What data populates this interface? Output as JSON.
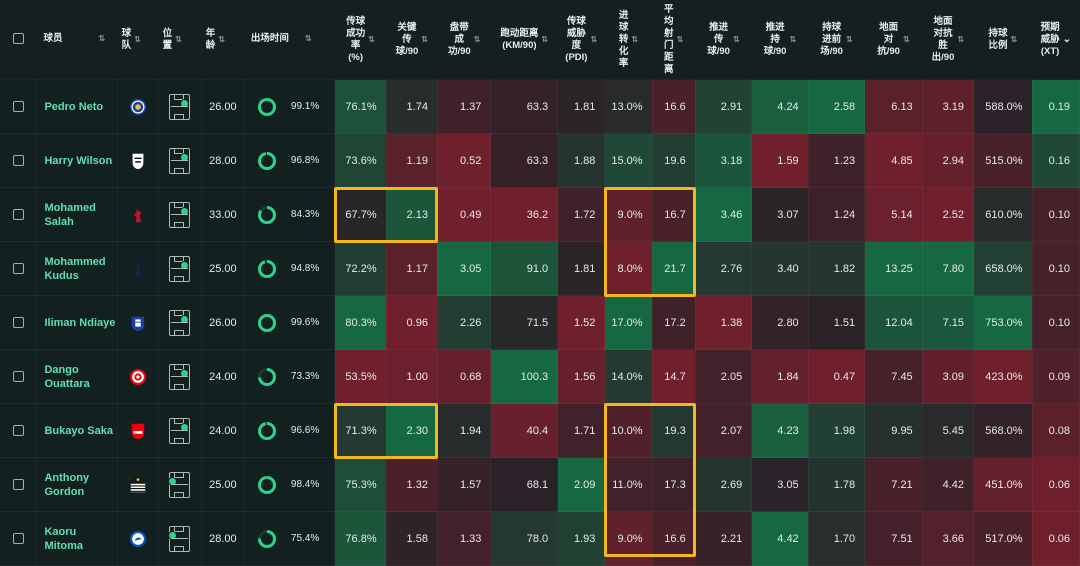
{
  "columns": [
    {
      "key": "player",
      "label": "球员"
    },
    {
      "key": "team",
      "label": "球\n队"
    },
    {
      "key": "position",
      "label": "位\n置"
    },
    {
      "key": "age",
      "label": "年\n龄"
    },
    {
      "key": "time",
      "label": "出场时间"
    },
    {
      "key": "pass_pct",
      "label": "传球\n成功\n率\n(%)"
    },
    {
      "key": "key_pass",
      "label": "关键\n传\n球/90"
    },
    {
      "key": "dribble",
      "label": "盘带\n成\n功/90"
    },
    {
      "key": "distance",
      "label": "跑动距离\n(KM/90)"
    },
    {
      "key": "pdi",
      "label": "传球\n威胁\n度\n(PDI)"
    },
    {
      "key": "conv",
      "label": "进\n球\n转\n化\n率"
    },
    {
      "key": "shot_dist",
      "label": "平\n均\n射\n门\n距\n离"
    },
    {
      "key": "prog_pass",
      "label": "推进\n传\n球/90"
    },
    {
      "key": "prog_carry",
      "label": "推进\n持\n球/90"
    },
    {
      "key": "carry_final",
      "label": "持球\n进前\n场/90"
    },
    {
      "key": "ground_duel",
      "label": "地面\n对\n抗/90"
    },
    {
      "key": "ground_duel_win",
      "label": "地面\n对抗\n胜\n出/90"
    },
    {
      "key": "possession",
      "label": "持球\n比例"
    },
    {
      "key": "xt",
      "label": "预期\n威胁\n(XT)"
    }
  ],
  "sort_icon": "sort-updown-icon",
  "sorted_icon": "arrow-down-icon",
  "colors": {
    "highlight": "#f5b81c",
    "name": "#5ee0b0",
    "ring": "#2bd48b"
  },
  "rows": [
    {
      "name": "Pedro Neto",
      "team_icon": "chelsea-crest-icon",
      "age": "26.00",
      "time_pct": "99.1%",
      "time_frac": 0.991,
      "vals": [
        "76.1%",
        "1.74",
        "1.37",
        "63.3",
        "1.81",
        "13.0%",
        "16.6",
        "2.91",
        "4.24",
        "2.58",
        "6.13",
        "3.19",
        "588.0%",
        "0.19"
      ]
    },
    {
      "name": "Harry Wilson",
      "team_icon": "fulham-crest-icon",
      "age": "28.00",
      "time_pct": "96.8%",
      "time_frac": 0.968,
      "vals": [
        "73.6%",
        "1.19",
        "0.52",
        "63.3",
        "1.88",
        "15.0%",
        "19.6",
        "3.18",
        "1.59",
        "1.23",
        "4.85",
        "2.94",
        "515.0%",
        "0.16"
      ]
    },
    {
      "name": "Mohamed Salah",
      "team_icon": "liverpool-crest-icon",
      "age": "33.00",
      "time_pct": "84.3%",
      "time_frac": 0.843,
      "vals": [
        "67.7%",
        "2.13",
        "0.49",
        "36.2",
        "1.72",
        "9.0%",
        "16.7",
        "3.46",
        "3.07",
        "1.24",
        "5.14",
        "2.52",
        "610.0%",
        "0.10"
      ]
    },
    {
      "name": "Mohammed Kudus",
      "team_icon": "tottenham-crest-icon",
      "age": "25.00",
      "time_pct": "94.8%",
      "time_frac": 0.948,
      "vals": [
        "72.2%",
        "1.17",
        "3.05",
        "91.0",
        "1.81",
        "8.0%",
        "21.7",
        "2.76",
        "3.40",
        "1.82",
        "13.25",
        "7.80",
        "658.0%",
        "0.10"
      ]
    },
    {
      "name": "Iliman Ndiaye",
      "team_icon": "everton-crest-icon",
      "age": "26.00",
      "time_pct": "99.6%",
      "time_frac": 0.996,
      "vals": [
        "80.3%",
        "0.96",
        "2.26",
        "71.5",
        "1.52",
        "17.0%",
        "17.2",
        "1.38",
        "2.80",
        "1.51",
        "12.04",
        "7.15",
        "753.0%",
        "0.10"
      ]
    },
    {
      "name": "Dango Ouattara",
      "team_icon": "brentford-crest-icon",
      "age": "24.00",
      "time_pct": "73.3%",
      "time_frac": 0.733,
      "vals": [
        "53.5%",
        "1.00",
        "0.68",
        "100.3",
        "1.56",
        "14.0%",
        "14.7",
        "2.05",
        "1.84",
        "0.47",
        "7.45",
        "3.09",
        "423.0%",
        "0.09"
      ]
    },
    {
      "name": "Bukayo Saka",
      "team_icon": "arsenal-crest-icon",
      "age": "24.00",
      "time_pct": "96.6%",
      "time_frac": 0.966,
      "vals": [
        "71.3%",
        "2.30",
        "1.94",
        "40.4",
        "1.71",
        "10.0%",
        "19.3",
        "2.07",
        "4.23",
        "1.98",
        "9.95",
        "5.45",
        "568.0%",
        "0.08"
      ]
    },
    {
      "name": "Anthony Gordon",
      "team_icon": "newcastle-crest-icon",
      "age": "25.00",
      "time_pct": "98.4%",
      "time_frac": 0.984,
      "vals": [
        "75.3%",
        "1.32",
        "1.57",
        "68.1",
        "2.09",
        "11.0%",
        "17.3",
        "2.69",
        "3.05",
        "1.78",
        "7.21",
        "4.42",
        "451.0%",
        "0.06"
      ]
    },
    {
      "name": "Kaoru Mitoma",
      "team_icon": "brighton-crest-icon",
      "age": "28.00",
      "time_pct": "75.4%",
      "time_frac": 0.754,
      "vals": [
        "76.8%",
        "1.58",
        "1.33",
        "78.0",
        "1.93",
        "9.0%",
        "16.6",
        "2.21",
        "4.42",
        "1.70",
        "7.51",
        "3.66",
        "517.0%",
        "0.06"
      ]
    }
  ]
}
